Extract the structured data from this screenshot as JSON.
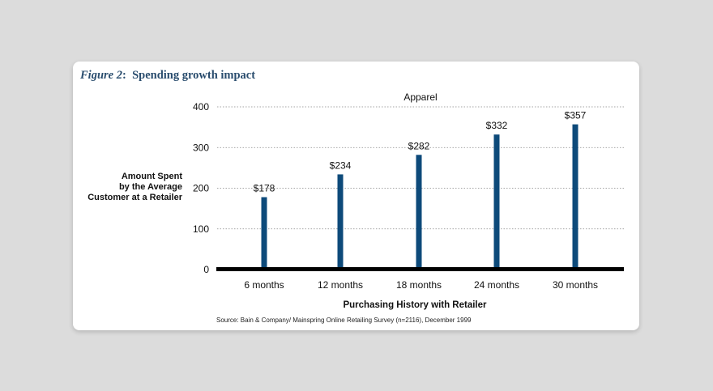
{
  "figure": {
    "label": "Figure 2",
    "title": "Spending growth impact"
  },
  "chart_data": {
    "type": "bar",
    "title": "Apparel",
    "categories": [
      "6 months",
      "12 months",
      "18 months",
      "24 months",
      "30 months"
    ],
    "values": [
      178,
      234,
      282,
      332,
      357
    ],
    "data_labels": [
      "$178",
      "$234",
      "$282",
      "$332",
      "$357"
    ],
    "xlabel": "Purchasing History with Retailer",
    "ylabel": [
      "Amount Spent",
      "by the Average",
      "Customer at a Retailer"
    ],
    "ylim": [
      0,
      400
    ],
    "yticks": [
      0,
      100,
      200,
      300,
      400
    ],
    "grid": true,
    "bar_color": "#0d4a7a",
    "source": "Source: Bain & Company/ Mainspring Online Retailing Survey (n=2116), December 1999"
  }
}
